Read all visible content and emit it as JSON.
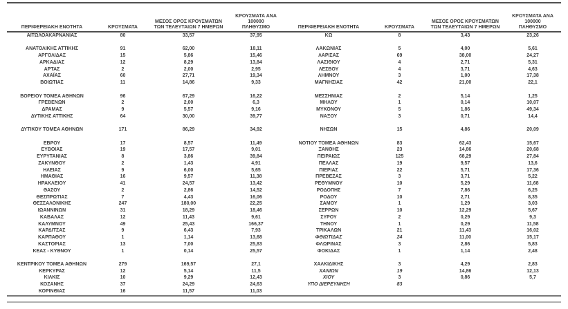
{
  "colors": {
    "text": "#3d3d3d",
    "rule_dark": "#4f4f4f",
    "rule_mid": "#787878",
    "rule_light": "#b0b0b0",
    "background": "#ffffff"
  },
  "table": {
    "headers": {
      "region": "ΠΕΡΙΦΕΡΕΙΑΚΗ ΕΝΟΤΗΤΑ",
      "cases": "ΚΡΟΥΣΜΑΤΑ",
      "avg7": "ΜΕΣΟΣ ΟΡΟΣ ΚΡΟΥΣΜΑΤΩΝ\nΤΩΝ ΤΕΛΕΥΤΑΙΩΝ 7 ΗΜΕΡΩΝ",
      "per100k": "ΚΡΟΥΣΜΑΤΑ ΑΝΑ 100000\nΠΛΗΘΥΣΜΟ"
    },
    "rows": [
      {
        "l": [
          "ΑΙΤΩΛΟΑΚΑΡΝΑΝΙΑΣ",
          "80",
          "33,57",
          "37,95"
        ],
        "r": [
          "ΚΩ",
          "8",
          "3,43",
          "23,26"
        ]
      },
      {},
      {
        "l": [
          "ΑΝΑΤΟΛΙΚΗΣ ΑΤΤΙΚΗΣ",
          "91",
          "62,00",
          "18,11"
        ],
        "r": [
          "ΛΑΚΩΝΙΑΣ",
          "5",
          "4,00",
          "5,61"
        ]
      },
      {
        "l": [
          "ΑΡΓΟΛΙΔΑΣ",
          "15",
          "5,86",
          "15,46"
        ],
        "r": [
          "ΛΑΡΙΣΑΣ",
          "69",
          "38,00",
          "24,27"
        ]
      },
      {
        "l": [
          "ΑΡΚΑΔΙΑΣ",
          "12",
          "8,29",
          "13,84"
        ],
        "r": [
          "ΛΑΣΙΘΙΟΥ",
          "4",
          "2,71",
          "5,31"
        ]
      },
      {
        "l": [
          "ΑΡΤΑΣ",
          "2",
          "2,00",
          "2,95"
        ],
        "r": [
          "ΛΕΣΒΟΥ",
          "4",
          "3,71",
          "4,63"
        ]
      },
      {
        "l": [
          "ΑΧΑΪΑΣ",
          "60",
          "27,71",
          "19,34"
        ],
        "r": [
          "ΛΗΜΝΟΥ",
          "3",
          "1,00",
          "17,38"
        ]
      },
      {
        "l": [
          "ΒΟΙΩΤΙΑΣ",
          "11",
          "14,86",
          "9,33"
        ],
        "r": [
          "ΜΑΓΝΗΣΙΑΣ",
          "42",
          "21,00",
          "22,1"
        ]
      },
      {},
      {
        "l": [
          "ΒΟΡΕΙΟΥ ΤΟΜΕΑ ΑΘΗΝΩΝ",
          "96",
          "67,29",
          "16,22"
        ],
        "r": [
          "ΜΕΣΣΗΝΙΑΣ",
          "2",
          "5,14",
          "1,25"
        ]
      },
      {
        "l": [
          "ΓΡΕΒΕΝΩΝ",
          "2",
          "2,00",
          "6,3"
        ],
        "r": [
          "ΜΗΛΟΥ",
          "1",
          "0,14",
          "10,07"
        ]
      },
      {
        "l": [
          "ΔΡΑΜΑΣ",
          "9",
          "5,57",
          "9,16"
        ],
        "r": [
          "ΜΥΚΟΝΟΥ",
          "5",
          "1,86",
          "49,34"
        ]
      },
      {
        "l": [
          "ΔΥΤΙΚΗΣ ΑΤΤΙΚΗΣ",
          "64",
          "30,00",
          "39,77"
        ],
        "r": [
          "ΝΑΞΟΥ",
          "3",
          "0,71",
          "14,4"
        ]
      },
      {},
      {
        "l": [
          "ΔΥΤΙΚΟΥ ΤΟΜΕΑ ΑΘΗΝΩΝ",
          "171",
          "86,29",
          "34,92"
        ],
        "r": [
          "ΝΗΣΩΝ",
          "15",
          "4,86",
          "20,09"
        ]
      },
      {},
      {
        "l": [
          "ΕΒΡΟΥ",
          "17",
          "8,57",
          "11,49"
        ],
        "r": [
          "ΝΟΤΙΟΥ ΤΟΜΕΑ ΑΘΗΝΩΝ",
          "83",
          "62,43",
          "15,67"
        ]
      },
      {
        "l": [
          "ΕΥΒΟΙΑΣ",
          "19",
          "17,57",
          "9,01"
        ],
        "r": [
          "ΞΑΝΘΗΣ",
          "23",
          "14,86",
          "20,68"
        ]
      },
      {
        "l": [
          "ΕΥΡΥΤΑΝΙΑΣ",
          "8",
          "3,86",
          "39,84"
        ],
        "r": [
          "ΠΕΙΡΑΙΩΣ",
          "125",
          "68,29",
          "27,84"
        ]
      },
      {
        "l": [
          "ΖΑΚΥΝΘΟΥ",
          "2",
          "1,43",
          "4,91"
        ],
        "r": [
          "ΠΕΛΛΑΣ",
          "19",
          "9,57",
          "13,6"
        ]
      },
      {
        "l": [
          "ΗΛΕΙΑΣ",
          "9",
          "6,00",
          "5,65"
        ],
        "r": [
          "ΠΙΕΡΙΑΣ",
          "22",
          "5,71",
          "17,36"
        ]
      },
      {
        "l": [
          "ΗΜΑΘΙΑΣ",
          "16",
          "9,57",
          "11,38"
        ],
        "r": [
          "ΠΡΕΒΕΖΑΣ",
          "3",
          "3,71",
          "5,22"
        ]
      },
      {
        "l": [
          "ΗΡΑΚΛΕΙΟΥ",
          "41",
          "24,57",
          "13,42"
        ],
        "r": [
          "ΡΕΘΥΜΝΟΥ",
          "10",
          "5,29",
          "11,68"
        ]
      },
      {
        "l": [
          "ΘΑΣΟΥ",
          "2",
          "2,86",
          "14,52"
        ],
        "r": [
          "ΡΟΔΟΠΗΣ",
          "7",
          "7,86",
          "6,25"
        ]
      },
      {
        "l": [
          "ΘΕΣΠΡΩΤΙΑΣ",
          "7",
          "4,43",
          "16,06"
        ],
        "r": [
          "ΡΟΔΟΥ",
          "10",
          "2,71",
          "8,35"
        ]
      },
      {
        "l": [
          "ΘΕΣΣΑΛΟΝΙΚΗΣ",
          "247",
          "180,00",
          "22,25"
        ],
        "r": [
          "ΣΑΜΟΥ",
          "1",
          "1,29",
          "3,03"
        ]
      },
      {
        "l": [
          "ΙΩΑΝΝΙΝΩΝ",
          "31",
          "18,29",
          "18,46"
        ],
        "r": [
          "ΣΕΡΡΩΝ",
          "10",
          "12,29",
          "5,67"
        ]
      },
      {
        "l": [
          "ΚΑΒΑΛΑΣ",
          "12",
          "11,43",
          "9,61"
        ],
        "r": [
          "ΣΥΡΟΥ",
          "2",
          "0,29",
          "9,3"
        ]
      },
      {
        "l": [
          "ΚΑΛΥΜΝΟΥ",
          "49",
          "25,43",
          "166,37"
        ],
        "r": [
          "ΤΗΝΟΥ",
          "1",
          "0,29",
          "11,58"
        ]
      },
      {
        "l": [
          "ΚΑΡΔΙΤΣΑΣ",
          "9",
          "6,43",
          "7,93"
        ],
        "r": [
          "ΤΡΙΚΑΛΩΝ",
          "21",
          "11,43",
          "16,02"
        ]
      },
      {
        "l": [
          "ΚΑΡΠΑΘΟΥ",
          "1",
          "1,14",
          "13,68"
        ],
        "r": [
          "ΦΘΙΩΤΙΔΑΣ",
          "24",
          "11,00",
          "15,17"
        ],
        "ri": [
          0,
          1
        ]
      },
      {
        "l": [
          "ΚΑΣΤΟΡΙΑΣ",
          "13",
          "7,00",
          "25,83"
        ],
        "r": [
          "ΦΛΩΡΙΝΑΣ",
          "3",
          "2,86",
          "5,83"
        ]
      },
      {
        "l": [
          "ΚΕΑΣ - ΚΥΘΝΟΥ",
          "1",
          "0,14",
          "25,57"
        ],
        "r": [
          "ΦΟΚΙΔΑΣ",
          "1",
          "1,14",
          "2,48"
        ]
      },
      {},
      {
        "l": [
          "ΚΕΝΤΡΙΚΟΥ ΤΟΜΕΑ ΑΘΗΝΩΝ",
          "279",
          "169,57",
          "27,1"
        ],
        "r": [
          "ΧΑΛΚΙΔΙΚΗΣ",
          "3",
          "4,29",
          "2,83"
        ]
      },
      {
        "l": [
          "ΚΕΡΚΥΡΑΣ",
          "12",
          "5,14",
          "11,5"
        ],
        "r": [
          "ΧΑΝΙΩΝ",
          "19",
          "14,86",
          "12,13"
        ],
        "ri": [
          0,
          1
        ]
      },
      {
        "l": [
          "ΚΙΛΚΙΣ",
          "10",
          "9,29",
          "12,43"
        ],
        "r": [
          "ΧΙΟΥ",
          "3",
          "0,86",
          "5,7"
        ],
        "ri": [
          0
        ]
      },
      {
        "l": [
          "ΚΟΖΑΝΗΣ",
          "37",
          "24,29",
          "24,63"
        ],
        "r": [
          "ΥΠΟ ΔΙΕΡΕΥΝΗΣΗ",
          "83",
          "",
          ""
        ],
        "ri": [
          0,
          1
        ]
      },
      {
        "l": [
          "ΚΟΡΙΝΘΙΑΣ",
          "16",
          "11,57",
          "11,03"
        ]
      }
    ]
  }
}
